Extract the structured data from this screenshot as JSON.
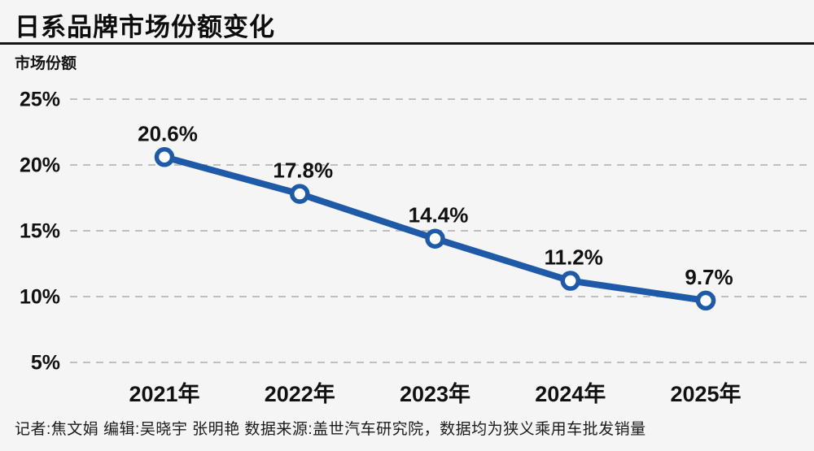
{
  "page": {
    "title": "日系品牌市场份额变化",
    "y_axis_title": "市场份额",
    "footer": "记者:焦文娟  编辑:吴晓宇 张明艳  数据来源:盖世汽车研究院，数据均为狭义乘用车批发销量",
    "background_color": "#f5f5f5",
    "rule_color": "#141414"
  },
  "chart_data": {
    "type": "line",
    "title": "日系品牌市场份额变化",
    "ylabel": "市场份额",
    "xlabel": "",
    "categories": [
      "2021年",
      "2022年",
      "2023年",
      "2024年",
      "2025年"
    ],
    "values": [
      20.6,
      17.8,
      14.4,
      11.2,
      9.7
    ],
    "point_labels": [
      "20.6%",
      "17.8%",
      "14.4%",
      "11.2%",
      "9.7%"
    ],
    "yticks": [
      25,
      20,
      15,
      10,
      5
    ],
    "ytick_labels": [
      "25%",
      "20%",
      "15%",
      "10%",
      "5%"
    ],
    "ylim": [
      3,
      27
    ],
    "grid": "horizontal-dashed",
    "legend": "none",
    "line_color": "#1e5aa7",
    "marker_fill": "#ffffff",
    "gridline_color": "#bfbfbf",
    "label_color": "#111111"
  }
}
